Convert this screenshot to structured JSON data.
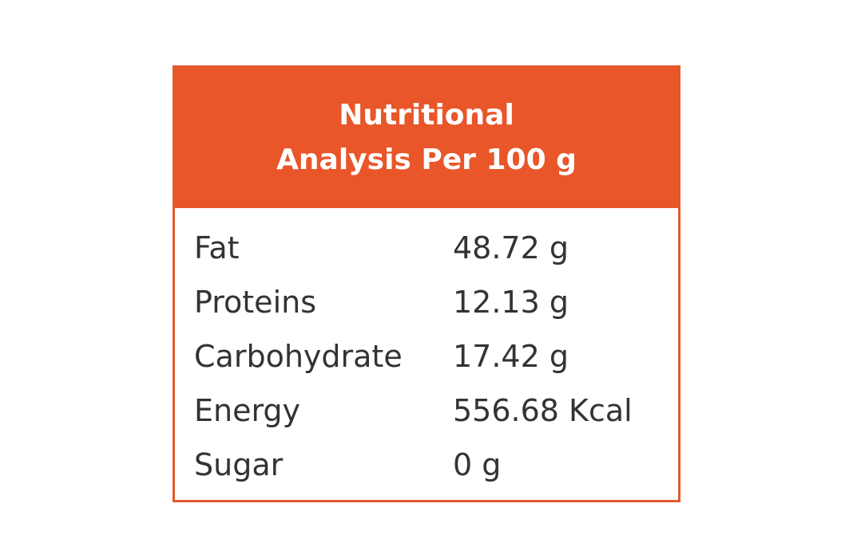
{
  "header": {
    "title_lines": [
      "Nutritional",
      "Analysis Per 100 g"
    ]
  },
  "table": {
    "rows": [
      [
        "Fat",
        "48.72 g"
      ],
      [
        "Proteins",
        "12.13 g"
      ],
      [
        "Carbohydrate",
        "17.42 g"
      ],
      [
        "Energy",
        "556.68 Kcal"
      ],
      [
        "Sugar",
        "0 g"
      ]
    ]
  }
}
